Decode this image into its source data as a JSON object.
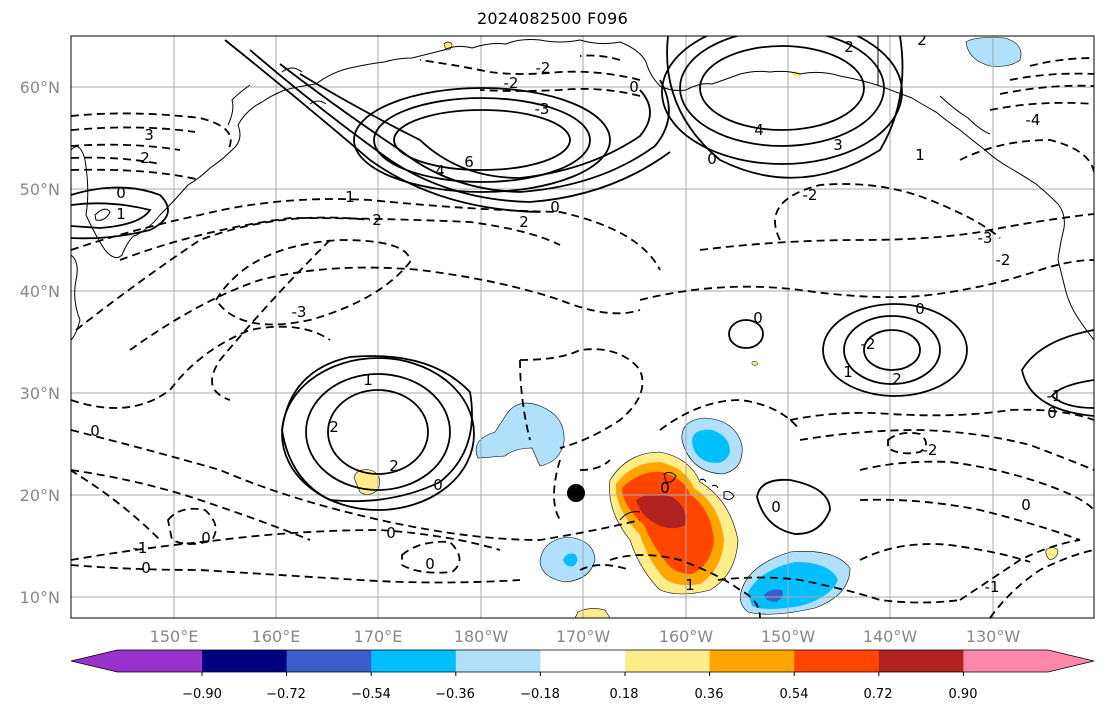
{
  "title": "2024082500 F096",
  "lat_labels": [
    "60°N",
    "50°N",
    "40°N",
    "30°N",
    "20°N",
    "10°N"
  ],
  "lon_labels": [
    "150°E",
    "160°E",
    "170°E",
    "180°W",
    "170°W",
    "160°W",
    "150°W",
    "140°W",
    "130°W"
  ],
  "colorbar": {
    "ticks": [
      "−0.90",
      "−0.72",
      "−0.54",
      "−0.36",
      "−0.18",
      "0.18",
      "0.36",
      "0.54",
      "0.72",
      "0.90"
    ],
    "colors": [
      "#9932cc",
      "#000080",
      "#3a5fcd",
      "#00bfff",
      "#b0e0fa",
      "#ffffff",
      "#ffec8b",
      "#ffa500",
      "#ff4500",
      "#b22222",
      "#ff88aa"
    ]
  },
  "contour_labels": [
    "3",
    "2",
    "0",
    "1",
    "-3",
    "2",
    "2",
    "-2",
    "4",
    "6",
    "0",
    "-2",
    "-3",
    "0",
    "1",
    "2",
    "0",
    "2",
    "3",
    "4",
    "-4",
    "1",
    "-3",
    "-2",
    "-2",
    "0",
    "1",
    "-2",
    "2",
    "0",
    "0",
    "-1",
    "-2",
    "0",
    "-1",
    "0",
    "-1",
    "0",
    "0",
    "0",
    "0"
  ],
  "marker": "storm-center-dot"
}
